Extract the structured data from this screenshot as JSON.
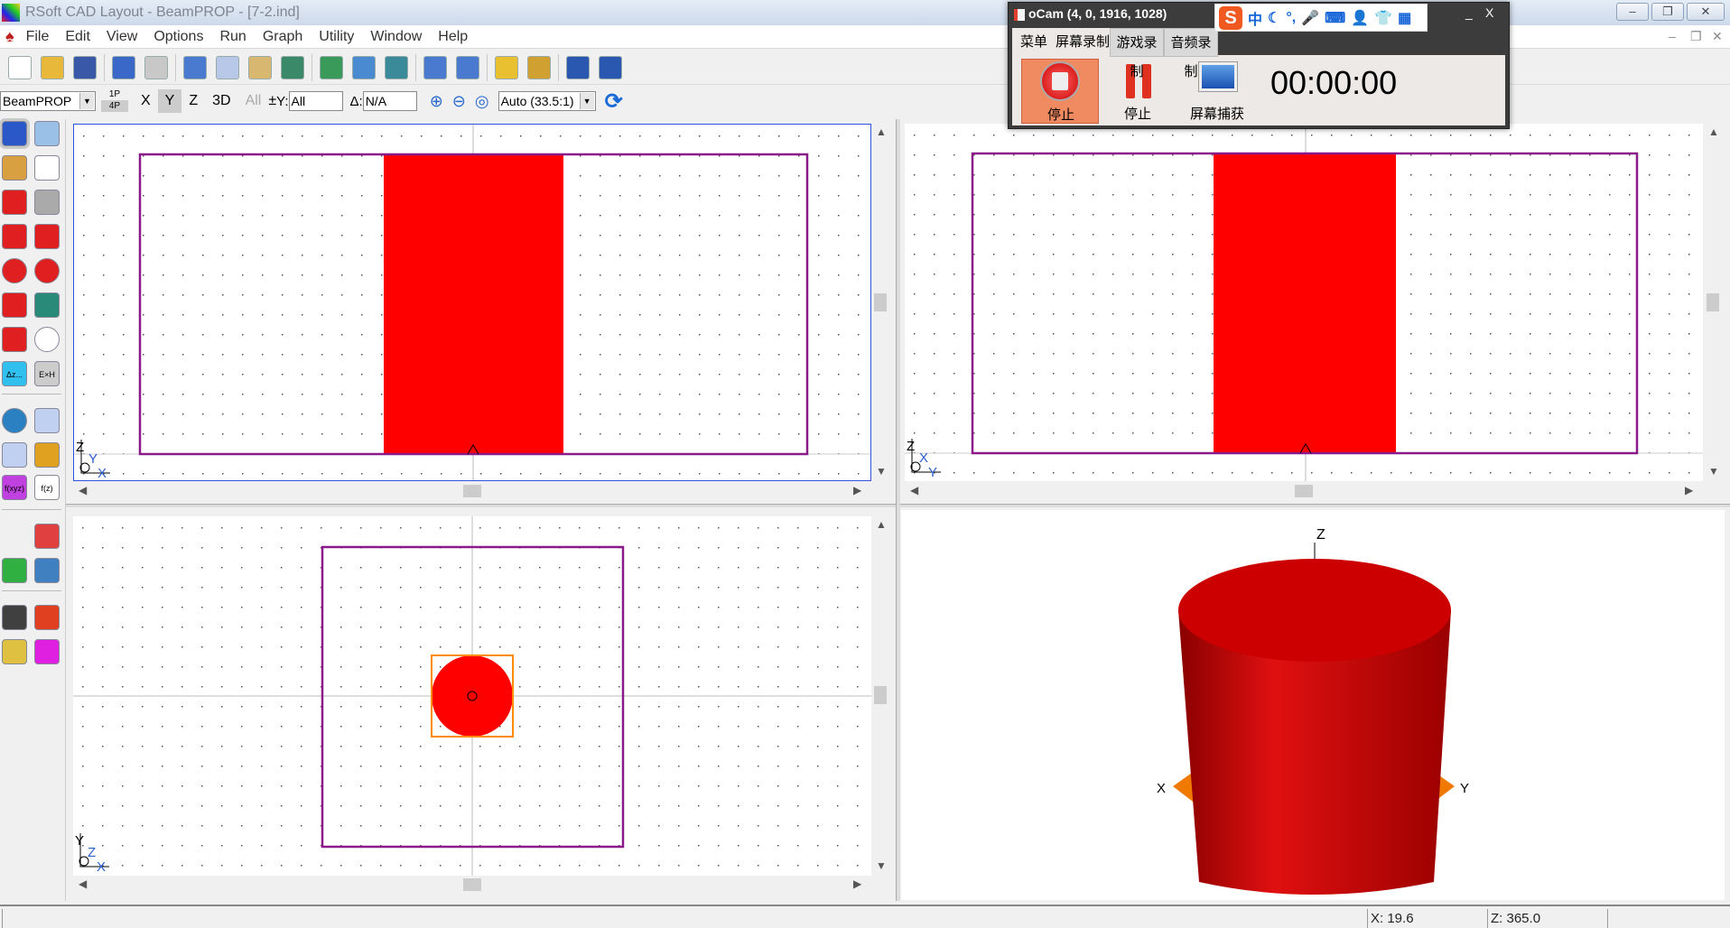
{
  "window": {
    "title": "RSoft CAD Layout - BeamPROP - [7-2.ind]",
    "min": "‒",
    "restore": "❐",
    "close": "✕"
  },
  "menu": [
    "File",
    "Edit",
    "View",
    "Options",
    "Run",
    "Graph",
    "Utility",
    "Window",
    "Help"
  ],
  "mdi": {
    "min": "–",
    "restore": "❐",
    "close": "✕"
  },
  "toolbar1": [
    {
      "icon": "new-file-icon",
      "color": "#ffffff"
    },
    {
      "icon": "open-folder-icon",
      "color": "#e8b83a"
    },
    {
      "icon": "save-icon",
      "color": "#3a58a8"
    },
    null,
    {
      "icon": "undo-icon",
      "color": "#3a68c8"
    },
    {
      "icon": "redo-icon",
      "color": "#c8c8c8"
    },
    null,
    {
      "icon": "cut-icon",
      "color": "#4a7ad0"
    },
    {
      "icon": "copy-icon",
      "color": "#b8c8e8"
    },
    {
      "icon": "paste-icon",
      "color": "#d8b870"
    },
    {
      "icon": "group-icon",
      "color": "#3a8a6a"
    },
    null,
    {
      "icon": "align-icon",
      "color": "#3a9a5a"
    },
    {
      "icon": "distribute-icon",
      "color": "#4a8ad0"
    },
    {
      "icon": "add-segment-icon",
      "color": "#3a8a9a"
    },
    null,
    {
      "icon": "stack-vertical-icon",
      "color": "#4a7ad0"
    },
    {
      "icon": "stack-grid-icon",
      "color": "#4a7ad0"
    },
    null,
    {
      "icon": "symbol-table-icon",
      "color": "#e8c030"
    },
    {
      "icon": "windows-icon",
      "color": "#d0a030"
    },
    null,
    {
      "icon": "help-cad-icon",
      "color": "#2a58b0"
    },
    {
      "icon": "help-sim-icon",
      "color": "#2a58b0"
    }
  ],
  "toolbar2": {
    "program": "BeamPROP",
    "view_1p": "1P",
    "view_4p": "4P",
    "x": "X",
    "y": "Y",
    "z": "Z",
    "three_d": "3D",
    "all": "All",
    "y_label": "Y:",
    "y_value": "All",
    "delta_label": "Δ:",
    "delta_value": "N/A",
    "zoom_mode": "Auto (33.5:1)"
  },
  "palette": [
    {
      "icon": "select-arrow-icon",
      "color": "#2a58c8"
    },
    {
      "icon": "magnifier-icon",
      "color": "#9ac0e8"
    },
    {
      "icon": "tools-icon",
      "color": "#d8a040"
    },
    {
      "icon": "hand-pan-icon",
      "color": "#ffffff"
    },
    {
      "icon": "straight-waveguide-icon",
      "color": "#e02020"
    },
    {
      "icon": "component-shapes-icon",
      "color": "#aaaaaa"
    },
    {
      "icon": "arc-waveguide-icon",
      "color": "#e02020"
    },
    {
      "icon": "s-bend-icon",
      "color": "#e02020"
    },
    {
      "icon": "lens-icon",
      "color": "#e02020"
    },
    {
      "icon": "sphere-icon",
      "color": "#e02020"
    },
    {
      "icon": "polygon-icon",
      "color": "#e02020"
    },
    {
      "icon": "taper-icon",
      "color": "#2a8a7a"
    },
    {
      "icon": "cylinder-icon",
      "color": "#e02020"
    },
    {
      "icon": "ring-icon",
      "color": "#ffffff"
    },
    {
      "icon": "delta-z-icon",
      "color": "#30c0f0"
    },
    {
      "icon": "exh-icon",
      "color": "#cccccc"
    },
    {
      "icon": "globe-icon",
      "color": "#2a80c0"
    },
    {
      "icon": "text-list-icon",
      "color": "#c0d0f0"
    },
    {
      "icon": "profile-plot-icon",
      "color": "#c0d0f0"
    },
    {
      "icon": "layers-icon",
      "color": "#e0a020"
    },
    {
      "icon": "fxyz-icon",
      "color": "#c040e0"
    },
    {
      "icon": "fz-icon",
      "color": "#ffffff"
    },
    {
      "icon": "rocket-icon",
      "color": "#e04040"
    },
    {
      "icon": "coupler-icon",
      "color": "#30b040"
    },
    {
      "icon": "grating-icon",
      "color": "#4080c0"
    },
    {
      "icon": "traffic-light-icon",
      "color": "#404040"
    },
    {
      "icon": "substrate-icon",
      "color": "#e04020"
    },
    {
      "icon": "diamond-stack-icon",
      "color": "#e0c040"
    },
    {
      "icon": "field-map-icon",
      "color": "#e020e0"
    }
  ],
  "palette_labels": {
    "dz": "Δz...",
    "exh": "E×H",
    "fxyz": "f(xyz)",
    "fz": "f(z)"
  },
  "views": {
    "top_left": {
      "axes": [
        "Z",
        "Y",
        "X"
      ]
    },
    "top_right": {
      "axes": [
        "Z",
        "X",
        "Y"
      ]
    },
    "bottom_left": {
      "axes": [
        "Y",
        "Z",
        "X"
      ]
    },
    "three_d": {
      "axes": [
        "Z",
        "X",
        "Y"
      ]
    }
  },
  "colors": {
    "segment": "#ff0000",
    "boundary": "#8a1a8a",
    "highlight": "#ff8c00",
    "cylinder": "#cc0000",
    "substrate": "#f07a00"
  },
  "status": {
    "x": "X: 19.6",
    "z": "Z: 365.0"
  },
  "ocam": {
    "title": "oCam (4, 0, 1916, 1028)",
    "tabs": [
      "菜单",
      "屏幕录制",
      "游戏录制",
      "音频录制"
    ],
    "buttons": [
      "停止",
      "停止",
      "屏幕捕获"
    ],
    "timer": "00:00:00",
    "min": "_",
    "close": "X"
  },
  "ime": {
    "logo": "S",
    "items": [
      "中",
      "☾",
      "°,",
      "🎤",
      "⌨",
      "👤",
      "👕",
      "▦"
    ]
  }
}
